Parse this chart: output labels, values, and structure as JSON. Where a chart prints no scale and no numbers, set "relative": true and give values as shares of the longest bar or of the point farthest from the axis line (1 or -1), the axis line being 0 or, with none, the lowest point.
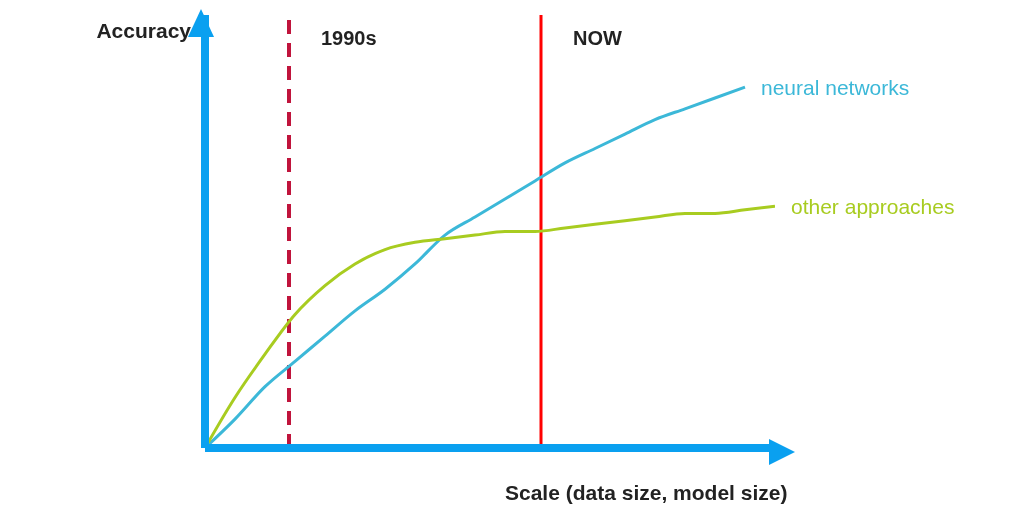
{
  "chart_data": {
    "type": "line",
    "relative": true,
    "ylabel": "Accuracy",
    "xlabel": "Scale (data size, model size)",
    "categories": [
      null,
      null,
      null,
      null,
      null,
      null,
      null,
      null,
      null,
      null,
      null,
      null,
      null,
      null,
      null,
      null,
      null,
      null,
      null,
      null
    ],
    "series": [
      {
        "name": "neural networks",
        "color": "#3cb8d8",
        "values": [
          0,
          0.08,
          0.17,
          0.24,
          0.31,
          0.38,
          0.44,
          0.51,
          0.59,
          0.64,
          0.69,
          0.74,
          0.79,
          0.83,
          0.87,
          0.91,
          0.94,
          0.97,
          1,
          null
        ]
      },
      {
        "name": "other approaches",
        "color": "#a8cc20",
        "values": [
          0,
          0.14,
          0.26,
          0.37,
          0.45,
          0.51,
          0.55,
          0.57,
          0.58,
          0.59,
          0.6,
          0.6,
          0.61,
          0.62,
          0.63,
          0.64,
          0.65,
          0.65,
          0.66,
          0.67
        ]
      }
    ],
    "annotations": [
      "1990s",
      "NOW"
    ],
    "grid": false,
    "legend": false,
    "marker": "none",
    "line_style": "solid"
  }
}
